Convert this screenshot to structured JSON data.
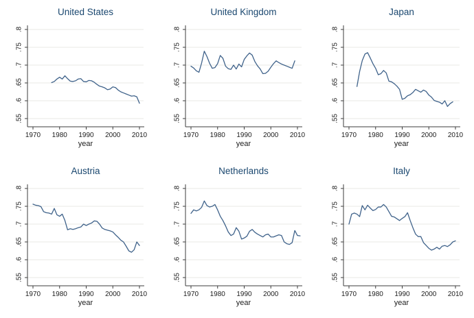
{
  "figure": {
    "colors": {
      "background": "#ffffff",
      "title": "#1a476f",
      "line": "#3f628a",
      "axis": "#3c3c3c",
      "grid": "#e8e8e4",
      "tick_text": "#1c1c1c"
    },
    "axes": {
      "xlabel": "year",
      "xlim": [
        1968,
        2011.5
      ],
      "ylim": [
        0.52,
        0.82
      ],
      "grid": true,
      "x_ticks": [
        {
          "label": "1970",
          "value": 1970
        },
        {
          "label": "1980",
          "value": 1980
        },
        {
          "label": "1990",
          "value": 1990
        },
        {
          "label": "2000",
          "value": 2000
        },
        {
          "label": "2010",
          "value": 2010
        }
      ],
      "y_ticks": [
        {
          "label": ".8",
          "value": 0.8
        },
        {
          "label": ".75",
          "value": 0.75
        },
        {
          "label": ".7",
          "value": 0.7
        },
        {
          "label": ".65",
          "value": 0.65
        },
        {
          "label": ".6",
          "value": 0.6
        },
        {
          "label": ".55",
          "value": 0.55
        }
      ]
    }
  },
  "chart_data": [
    {
      "type": "line",
      "title": "United States",
      "xlabel": "year",
      "x_start": 1977,
      "x_step": 1,
      "y": [
        0.651,
        0.654,
        0.661,
        0.666,
        0.661,
        0.67,
        0.662,
        0.655,
        0.654,
        0.656,
        0.661,
        0.662,
        0.654,
        0.653,
        0.657,
        0.656,
        0.652,
        0.646,
        0.641,
        0.639,
        0.636,
        0.631,
        0.633,
        0.639,
        0.637,
        0.63,
        0.625,
        0.622,
        0.619,
        0.616,
        0.613,
        0.614,
        0.611,
        0.593
      ]
    },
    {
      "type": "line",
      "title": "United Kingdom",
      "xlabel": "year",
      "x_start": 1970,
      "x_step": 1,
      "y": [
        0.697,
        0.692,
        0.684,
        0.68,
        0.706,
        0.739,
        0.724,
        0.705,
        0.691,
        0.693,
        0.704,
        0.727,
        0.719,
        0.697,
        0.69,
        0.688,
        0.7,
        0.689,
        0.703,
        0.695,
        0.716,
        0.726,
        0.734,
        0.728,
        0.71,
        0.698,
        0.689,
        0.676,
        0.677,
        0.683,
        0.694,
        0.704,
        0.712,
        0.707,
        0.703,
        0.7,
        0.697,
        0.694,
        0.691,
        0.712
      ]
    },
    {
      "type": "line",
      "title": "Japan",
      "xlabel": "year",
      "x_start": 1973,
      "x_step": 1,
      "y": [
        0.64,
        0.682,
        0.713,
        0.731,
        0.735,
        0.72,
        0.704,
        0.691,
        0.673,
        0.676,
        0.685,
        0.678,
        0.655,
        0.653,
        0.648,
        0.641,
        0.632,
        0.604,
        0.607,
        0.614,
        0.617,
        0.623,
        0.632,
        0.628,
        0.624,
        0.63,
        0.626,
        0.616,
        0.61,
        0.601,
        0.598,
        0.596,
        0.591,
        0.6,
        0.584,
        0.592,
        0.597
      ]
    },
    {
      "type": "line",
      "title": "Austria",
      "xlabel": "year",
      "x_start": 1970,
      "x_step": 1,
      "y": [
        0.756,
        0.753,
        0.752,
        0.749,
        0.735,
        0.732,
        0.731,
        0.728,
        0.744,
        0.726,
        0.722,
        0.728,
        0.71,
        0.684,
        0.687,
        0.685,
        0.687,
        0.69,
        0.692,
        0.7,
        0.696,
        0.7,
        0.703,
        0.709,
        0.708,
        0.7,
        0.689,
        0.685,
        0.683,
        0.681,
        0.678,
        0.67,
        0.663,
        0.655,
        0.65,
        0.638,
        0.625,
        0.621,
        0.628,
        0.65,
        0.64
      ]
    },
    {
      "type": "line",
      "title": "Netherlands",
      "xlabel": "year",
      "x_start": 1970,
      "x_step": 1,
      "y": [
        0.73,
        0.74,
        0.737,
        0.74,
        0.747,
        0.765,
        0.752,
        0.748,
        0.75,
        0.755,
        0.74,
        0.722,
        0.71,
        0.695,
        0.678,
        0.668,
        0.672,
        0.69,
        0.68,
        0.658,
        0.661,
        0.666,
        0.68,
        0.685,
        0.677,
        0.672,
        0.668,
        0.664,
        0.67,
        0.672,
        0.664,
        0.664,
        0.667,
        0.67,
        0.668,
        0.65,
        0.645,
        0.643,
        0.648,
        0.682,
        0.668,
        0.667
      ]
    },
    {
      "type": "line",
      "title": "Italy",
      "xlabel": "year",
      "x_start": 1970,
      "x_step": 1,
      "y": [
        0.7,
        0.728,
        0.731,
        0.728,
        0.721,
        0.752,
        0.74,
        0.753,
        0.745,
        0.738,
        0.741,
        0.748,
        0.748,
        0.755,
        0.748,
        0.735,
        0.722,
        0.72,
        0.715,
        0.71,
        0.716,
        0.721,
        0.732,
        0.71,
        0.69,
        0.672,
        0.665,
        0.665,
        0.648,
        0.64,
        0.632,
        0.627,
        0.63,
        0.635,
        0.63,
        0.638,
        0.64,
        0.637,
        0.642,
        0.65,
        0.653
      ]
    }
  ]
}
